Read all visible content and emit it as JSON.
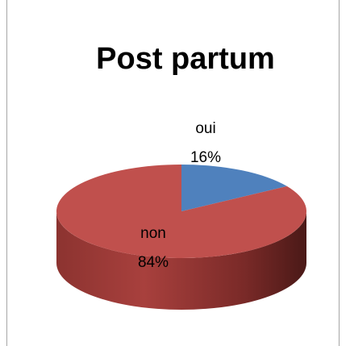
{
  "chart_data": {
    "type": "pie",
    "title": "Post partum",
    "categories": [
      "oui",
      "non"
    ],
    "values": [
      16,
      84
    ],
    "value_labels": [
      "16%",
      "84%"
    ],
    "colors": [
      "#4f81bd",
      "#c0504d"
    ]
  }
}
